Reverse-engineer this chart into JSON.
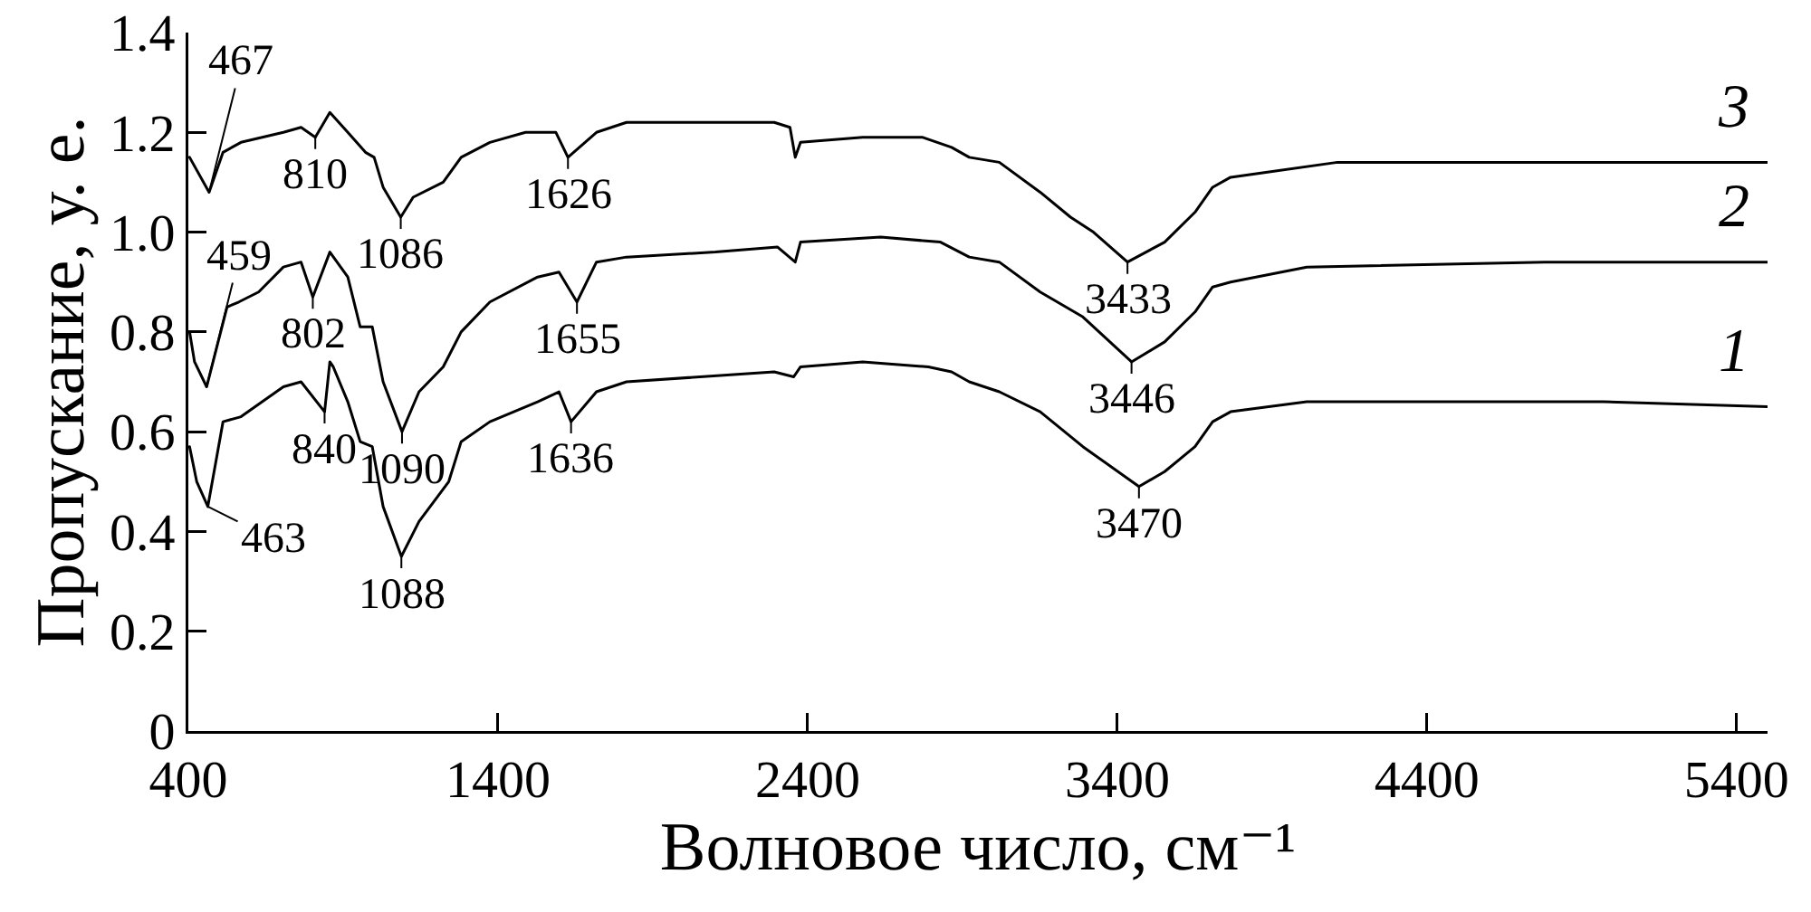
{
  "chart_data": {
    "type": "line",
    "xlabel": "Волновое число, см⁻¹",
    "ylabel": "Пропускание, у. е.",
    "xlim": [
      400,
      5500
    ],
    "xticks": [
      400,
      1400,
      2400,
      3400,
      4400,
      5400
    ],
    "ylim": [
      0,
      1.4
    ],
    "yticks": [
      0,
      0.2,
      0.4,
      0.6,
      0.8,
      {
        "value": 1,
        "label": "1.0"
      },
      1.2,
      1.4
    ],
    "series": [
      {
        "name": "1",
        "color": "#000000",
        "x": [
          404,
          427,
          463,
          512,
          570,
          707,
          764,
          840,
          857,
          868,
          915,
          955,
          994,
          1029,
          1088,
          1145,
          1241,
          1281,
          1374,
          1528,
          1597,
          1636,
          1718,
          1815,
          2292,
          2355,
          2377,
          2578,
          2790,
          2865,
          2922,
          3019,
          3151,
          3289,
          3470,
          3553,
          3651,
          3708,
          3766,
          4012,
          4397,
          4970,
          5500
        ],
        "values": [
          0.57,
          0.5,
          0.45,
          0.62,
          0.63,
          0.69,
          0.7,
          0.64,
          0.74,
          0.73,
          0.66,
          0.58,
          0.57,
          0.45,
          0.35,
          0.42,
          0.5,
          0.58,
          0.62,
          0.66,
          0.68,
          0.62,
          0.68,
          0.7,
          0.72,
          0.71,
          0.73,
          0.74,
          0.73,
          0.72,
          0.7,
          0.68,
          0.64,
          0.57,
          0.49,
          0.52,
          0.57,
          0.62,
          0.64,
          0.66,
          0.66,
          0.66,
          0.65
        ]
      },
      {
        "name": "2",
        "color": "#000000",
        "x": [
          404,
          420,
          459,
          525,
          563,
          627,
          707,
          764,
          802,
          857,
          915,
          955,
          994,
          1029,
          1090,
          1145,
          1223,
          1281,
          1374,
          1528,
          1597,
          1655,
          1718,
          1815,
          2102,
          2303,
          2360,
          2377,
          2636,
          2829,
          2922,
          3019,
          3151,
          3289,
          3446,
          3553,
          3651,
          3708,
          3766,
          4012,
          4781,
          5500
        ],
        "values": [
          0.8,
          0.74,
          0.69,
          0.85,
          0.86,
          0.88,
          0.93,
          0.94,
          0.87,
          0.96,
          0.91,
          0.81,
          0.81,
          0.7,
          0.6,
          0.68,
          0.73,
          0.8,
          0.86,
          0.91,
          0.92,
          0.86,
          0.94,
          0.95,
          0.96,
          0.97,
          0.94,
          0.98,
          0.99,
          0.98,
          0.95,
          0.94,
          0.88,
          0.83,
          0.74,
          0.78,
          0.84,
          0.89,
          0.9,
          0.93,
          0.94,
          0.94
        ]
      },
      {
        "name": "3",
        "color": "#000000",
        "x": [
          404,
          467,
          512,
          570,
          707,
          764,
          810,
          857,
          915,
          972,
          1000,
          1029,
          1086,
          1126,
          1223,
          1281,
          1374,
          1489,
          1587,
          1626,
          1718,
          1815,
          2005,
          2292,
          2343,
          2360,
          2377,
          2578,
          2772,
          2865,
          2922,
          3019,
          3151,
          3249,
          3323,
          3433,
          3553,
          3651,
          3708,
          3766,
          3880,
          4111,
          4781,
          5500
        ],
        "values": [
          1.15,
          1.08,
          1.16,
          1.18,
          1.2,
          1.21,
          1.19,
          1.24,
          1.2,
          1.16,
          1.15,
          1.09,
          1.03,
          1.07,
          1.1,
          1.15,
          1.18,
          1.2,
          1.2,
          1.15,
          1.2,
          1.22,
          1.22,
          1.22,
          1.21,
          1.15,
          1.18,
          1.19,
          1.19,
          1.17,
          1.15,
          1.14,
          1.08,
          1.03,
          1.0,
          0.94,
          0.98,
          1.04,
          1.09,
          1.11,
          1.12,
          1.14,
          1.14,
          1.14
        ]
      }
    ],
    "annotations": [
      {
        "text": "467",
        "x": 467,
        "y": 1.08
      },
      {
        "text": "810",
        "x": 810,
        "y": 1.19
      },
      {
        "text": "1086",
        "x": 1086,
        "y": 1.03
      },
      {
        "text": "1626",
        "x": 1626,
        "y": 1.15
      },
      {
        "text": "3433",
        "x": 3433,
        "y": 0.94
      },
      {
        "text": "459",
        "x": 459,
        "y": 0.69
      },
      {
        "text": "802",
        "x": 802,
        "y": 0.87
      },
      {
        "text": "1655",
        "x": 1655,
        "y": 0.86
      },
      {
        "text": "3446",
        "x": 3446,
        "y": 0.74
      },
      {
        "text": "463",
        "x": 463,
        "y": 0.45
      },
      {
        "text": "840",
        "x": 840,
        "y": 0.64
      },
      {
        "text": "1090",
        "x": 1090,
        "y": 0.6
      },
      {
        "text": "1636",
        "x": 1636,
        "y": 0.62
      },
      {
        "text": "3470",
        "x": 3470,
        "y": 0.49
      },
      {
        "text": "1088",
        "x": 1088,
        "y": 0.35
      }
    ]
  }
}
